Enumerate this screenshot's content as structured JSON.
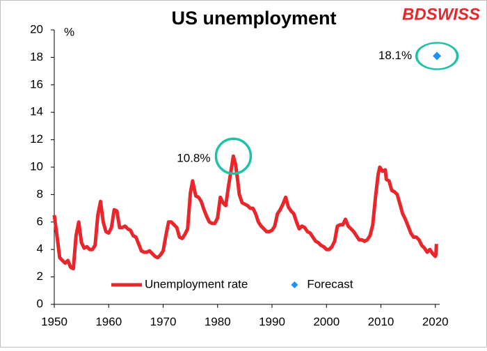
{
  "chart_data": {
    "type": "line",
    "title": "US unemployment",
    "logo": "BDSWISS",
    "y_unit_label": "%",
    "xlim": [
      1950,
      2020.8
    ],
    "xticks": [
      1950,
      1960,
      1970,
      1980,
      1990,
      2000,
      2010,
      2020
    ],
    "ylim": [
      0,
      20
    ],
    "yticks": [
      0,
      2,
      4,
      6,
      8,
      10,
      12,
      14,
      16,
      18,
      20
    ],
    "grid": false,
    "legend": "lower center",
    "series": [
      {
        "name": "Unemployment rate",
        "color": "#e8262b",
        "style": "line",
        "x": [
          1950,
          1950.5,
          1951,
          1951.5,
          1952,
          1952.5,
          1953,
          1953.5,
          1954,
          1954.5,
          1955,
          1955.5,
          1956,
          1956.5,
          1957,
          1957.5,
          1958,
          1958.5,
          1959,
          1959.5,
          1960,
          1960.5,
          1961,
          1961.5,
          1962,
          1962.5,
          1963,
          1963.5,
          1964,
          1964.5,
          1965,
          1965.5,
          1966,
          1966.5,
          1967,
          1967.5,
          1968,
          1968.5,
          1969,
          1969.5,
          1970,
          1970.5,
          1971,
          1971.5,
          1972,
          1972.5,
          1973,
          1973.5,
          1974,
          1974.5,
          1975,
          1975.4,
          1976,
          1976.5,
          1977,
          1977.5,
          1978,
          1978.5,
          1979,
          1979.5,
          1980,
          1980.5,
          1981,
          1981.5,
          1982,
          1982.5,
          1982.9,
          1983.3,
          1983.7,
          1984,
          1984.5,
          1985,
          1985.5,
          1986,
          1986.5,
          1987,
          1987.5,
          1988,
          1988.5,
          1989,
          1989.5,
          1990,
          1990.5,
          1991,
          1991.5,
          1992,
          1992.5,
          1993,
          1993.5,
          1994,
          1994.5,
          1995,
          1995.5,
          1996,
          1996.5,
          1997,
          1997.5,
          1998,
          1998.5,
          1999,
          1999.5,
          2000,
          2000.5,
          2001,
          2001.5,
          2002,
          2002.5,
          2003,
          2003.5,
          2004,
          2004.5,
          2005,
          2005.5,
          2006,
          2006.5,
          2007,
          2007.5,
          2008,
          2008.5,
          2009,
          2009.5,
          2009.8,
          2010.3,
          2010.8,
          2011,
          2011.5,
          2012,
          2012.5,
          2013,
          2013.5,
          2014,
          2014.5,
          2015,
          2015.5,
          2016,
          2016.5,
          2017,
          2017.5,
          2018,
          2018.5,
          2019,
          2019.5,
          2020,
          2020.1,
          2020.2
        ],
        "values": [
          6.5,
          5.0,
          3.4,
          3.2,
          3.0,
          3.2,
          2.7,
          2.6,
          5.0,
          6.0,
          4.5,
          4.1,
          4.2,
          4.0,
          4.0,
          4.3,
          6.5,
          7.5,
          6.0,
          5.3,
          5.2,
          5.6,
          6.9,
          6.8,
          5.6,
          5.6,
          5.7,
          5.5,
          5.4,
          5.0,
          4.9,
          4.4,
          3.9,
          3.8,
          3.8,
          3.9,
          3.7,
          3.5,
          3.4,
          3.6,
          3.9,
          5.0,
          6.0,
          6.0,
          5.8,
          5.6,
          4.9,
          4.8,
          5.1,
          5.5,
          8.1,
          9.0,
          7.9,
          7.8,
          7.5,
          6.9,
          6.4,
          6.0,
          5.9,
          5.9,
          6.3,
          7.8,
          7.4,
          7.2,
          8.6,
          9.8,
          10.8,
          10.2,
          9.0,
          8.0,
          7.4,
          7.3,
          7.2,
          7.0,
          7.0,
          6.6,
          6.0,
          5.7,
          5.5,
          5.3,
          5.3,
          5.4,
          5.7,
          6.6,
          6.9,
          7.3,
          7.8,
          7.1,
          6.8,
          6.6,
          6.0,
          5.5,
          5.7,
          5.6,
          5.3,
          5.2,
          4.9,
          4.6,
          4.5,
          4.3,
          4.2,
          4.0,
          4.0,
          4.2,
          4.6,
          5.7,
          5.8,
          5.8,
          6.2,
          5.7,
          5.5,
          5.3,
          5.0,
          4.7,
          4.7,
          4.6,
          4.7,
          5.0,
          5.8,
          7.8,
          9.5,
          10.0,
          9.7,
          9.8,
          9.1,
          9.0,
          8.3,
          8.2,
          8.0,
          7.3,
          6.6,
          6.2,
          5.7,
          5.2,
          4.9,
          4.9,
          4.7,
          4.3,
          4.1,
          3.8,
          4.0,
          3.7,
          3.5,
          3.6,
          4.4
        ]
      },
      {
        "name": "Forecast",
        "color": "#1f8fff",
        "style": "marker",
        "x": [
          2020.3
        ],
        "values": [
          18.1
        ],
        "value_labels": [
          "18.1%"
        ]
      }
    ],
    "annotations": [
      {
        "text": "10.8%",
        "x": 1982.9,
        "y": 10.8
      }
    ]
  }
}
